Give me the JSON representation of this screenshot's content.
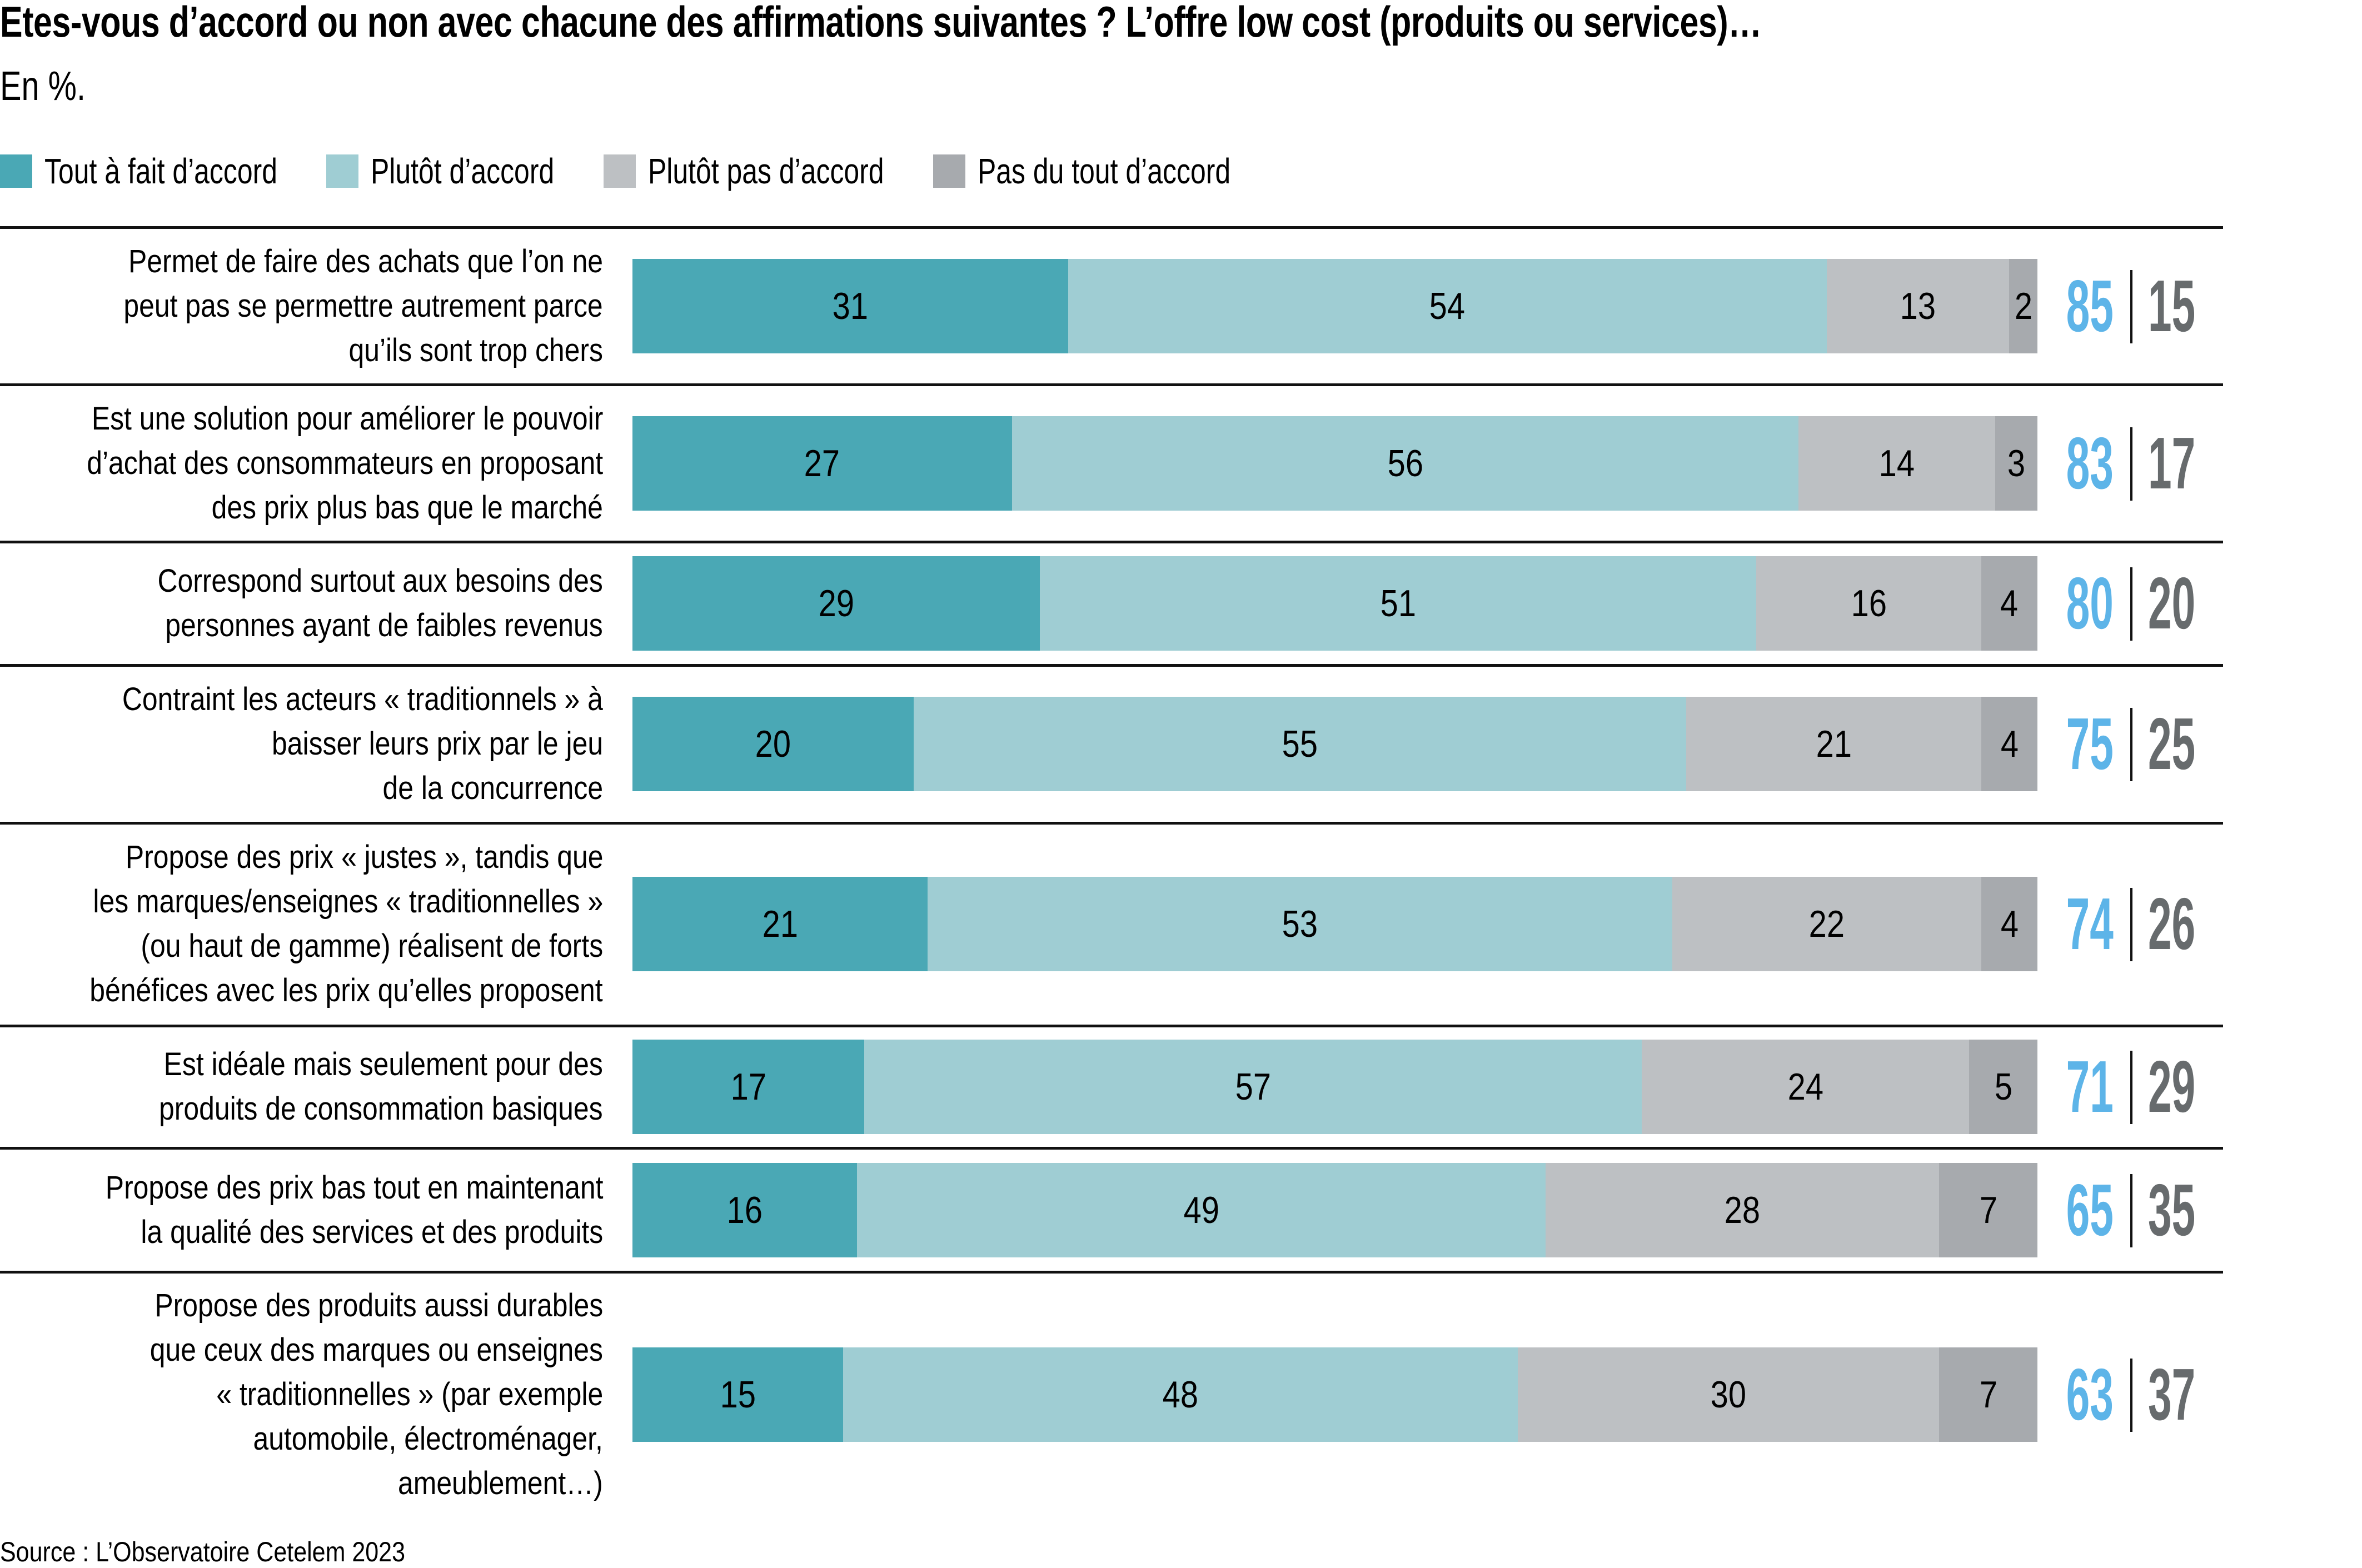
{
  "chart_data": {
    "type": "bar",
    "orientation": "horizontal",
    "stacked": true,
    "title": "Etes-vous d’accord ou non avec chacune des affirmations suivantes ? L’offre low cost (produits ou services)…",
    "subtitle": "En %.",
    "source": "Source : L’Observatoire Cetelem 2023",
    "xlabel": "",
    "ylabel": "",
    "xlim": [
      0,
      100
    ],
    "legend_position": "top-left",
    "grid": false,
    "series": [
      {
        "name": "Tout à fait d’accord",
        "color": "#4aa8b5",
        "values": [
          31,
          27,
          29,
          20,
          21,
          17,
          16,
          15
        ]
      },
      {
        "name": "Plutôt d’accord",
        "color": "#9fcdd3",
        "values": [
          54,
          56,
          51,
          55,
          53,
          57,
          49,
          48
        ]
      },
      {
        "name": "Plutôt pas d’accord",
        "color": "#bdc0c3",
        "values": [
          13,
          14,
          16,
          21,
          22,
          24,
          28,
          30
        ]
      },
      {
        "name": "Pas du tout d’accord",
        "color": "#a7aaae",
        "values": [
          2,
          3,
          4,
          4,
          4,
          5,
          7,
          7
        ]
      }
    ],
    "categories": [
      [
        "Permet de faire des achats que l’on ne",
        "peut pas se permettre autrement parce",
        "qu’ils sont trop chers"
      ],
      [
        "Est une solution pour améliorer le pouvoir",
        "d’achat des consommateurs en proposant",
        "des prix plus bas que le marché"
      ],
      [
        "Correspond surtout aux besoins des",
        "personnes ayant de faibles revenus"
      ],
      [
        "Contraint les acteurs « traditionnels » à",
        "baisser leurs prix par le jeu",
        "de la concurrence"
      ],
      [
        "Propose des prix « justes », tandis que",
        "les marques/enseignes « traditionnelles »",
        "(ou haut de gamme) réalisent de forts",
        "bénéfices avec les prix qu’elles proposent"
      ],
      [
        "Est idéale mais seulement pour des",
        "produits de consommation basiques"
      ],
      [
        "Propose des prix bas tout en maintenant",
        "la qualité des services et des produits"
      ],
      [
        "Propose des produits aussi durables",
        "que ceux des marques ou enseignes",
        "« traditionnelles » (par exemple",
        "automobile, électroménager,",
        "ameublement…)"
      ]
    ],
    "totals": {
      "agree": {
        "color": "#5db4e8",
        "values": [
          85,
          83,
          80,
          75,
          74,
          71,
          65,
          63
        ]
      },
      "disagree": {
        "color": "#676b6d",
        "values": [
          15,
          17,
          20,
          25,
          26,
          29,
          35,
          37
        ]
      }
    }
  }
}
